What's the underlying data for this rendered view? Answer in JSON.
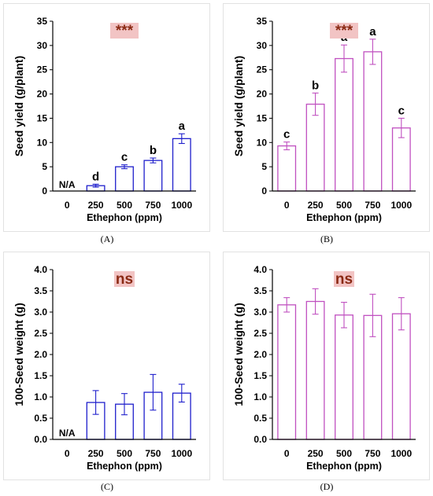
{
  "colors": {
    "blue": "#1f1fcc",
    "magenta": "#c050c0",
    "sig_text": "#8b2a14",
    "sig_bg": "#f2c4c4"
  },
  "chart_data": [
    {
      "id": "A",
      "caption": "(A)",
      "type": "bar",
      "color": "blue",
      "categories": [
        "0",
        "250",
        "500",
        "750",
        "1000"
      ],
      "values": [
        null,
        1.1,
        5.0,
        6.3,
        10.8
      ],
      "errors": [
        null,
        0.3,
        0.4,
        0.5,
        1.0
      ],
      "letters": [
        "",
        "d",
        "c",
        "b",
        "a"
      ],
      "na_label": "N/A",
      "significance": "***",
      "xlabel": "Ethephon (ppm)",
      "ylabel": "Seed yield (g/plant)",
      "ylim": [
        0,
        35
      ],
      "yticks": [
        "0",
        "5",
        "10",
        "15",
        "20",
        "25",
        "30",
        "35"
      ],
      "grid": false
    },
    {
      "id": "B",
      "caption": "(B)",
      "type": "bar",
      "color": "magenta",
      "categories": [
        "0",
        "250",
        "500",
        "750",
        "1000"
      ],
      "values": [
        9.3,
        17.9,
        27.3,
        28.7,
        13.0
      ],
      "errors": [
        0.8,
        2.3,
        2.8,
        2.6,
        2.0
      ],
      "letters": [
        "c",
        "b",
        "a",
        "a",
        "c"
      ],
      "na_label": "",
      "significance": "***",
      "xlabel": "Ethephon (ppm)",
      "ylabel": "Seed yield (g/plant)",
      "ylim": [
        0,
        35
      ],
      "yticks": [
        "0",
        "5",
        "10",
        "15",
        "20",
        "25",
        "30",
        "35"
      ],
      "grid": false
    },
    {
      "id": "C",
      "caption": "(C)",
      "type": "bar",
      "color": "blue",
      "categories": [
        "0",
        "250",
        "500",
        "750",
        "1000"
      ],
      "values": [
        null,
        0.87,
        0.83,
        1.11,
        1.09
      ],
      "errors": [
        null,
        0.28,
        0.25,
        0.42,
        0.21
      ],
      "letters": [
        "",
        "",
        "",
        "",
        ""
      ],
      "na_label": "N/A",
      "significance": "ns",
      "xlabel": "Ethephon (ppm)",
      "ylabel": "100-Seed weight (g)",
      "ylim": [
        0,
        4.0
      ],
      "yticks": [
        "0.0",
        "0.5",
        "1.0",
        "1.5",
        "2.0",
        "2.5",
        "3.0",
        "3.5",
        "4.0"
      ],
      "grid": false
    },
    {
      "id": "D",
      "caption": "(D)",
      "type": "bar",
      "color": "magenta",
      "categories": [
        "0",
        "250",
        "500",
        "750",
        "1000"
      ],
      "values": [
        3.17,
        3.25,
        2.93,
        2.92,
        2.96
      ],
      "errors": [
        0.17,
        0.3,
        0.3,
        0.5,
        0.38
      ],
      "letters": [
        "",
        "",
        "",
        "",
        ""
      ],
      "na_label": "",
      "significance": "ns",
      "xlabel": "Ethephon (ppm)",
      "ylabel": "100-Seed weight (g)",
      "ylim": [
        0,
        4.0
      ],
      "yticks": [
        "0.0",
        "0.5",
        "1.0",
        "1.5",
        "2.0",
        "2.5",
        "3.0",
        "3.5",
        "4.0"
      ],
      "grid": false
    }
  ]
}
